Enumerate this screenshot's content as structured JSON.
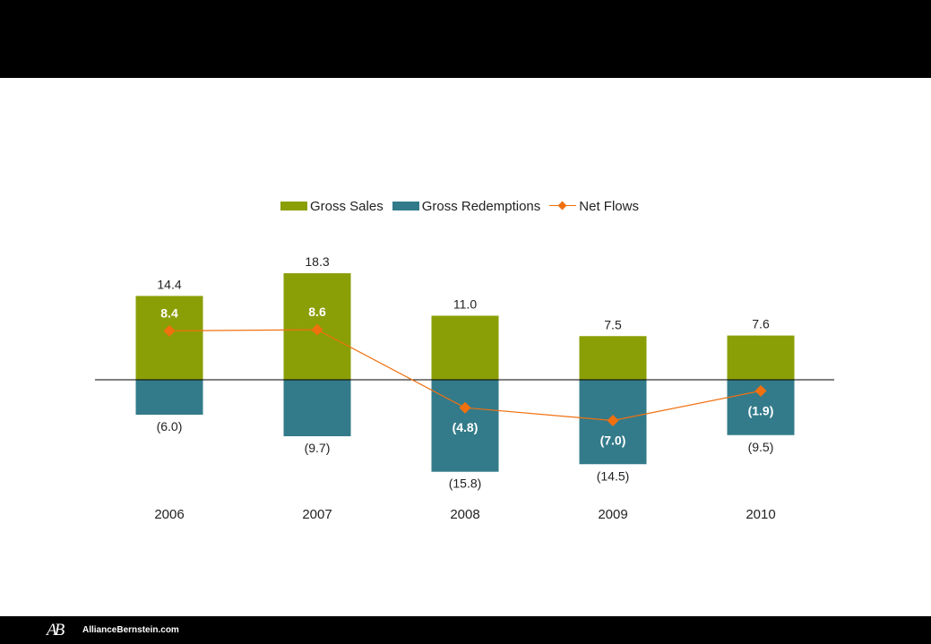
{
  "footer": {
    "logo": "AB",
    "site": "AllianceBernstein.com"
  },
  "colors": {
    "gross_sales": "#8a9f06",
    "gross_redemptions": "#337b8a",
    "net_flows": "#f07010"
  },
  "chart_data": {
    "type": "bar",
    "title": "",
    "xlabel": "",
    "ylabel": "",
    "ylim": [
      -17,
      19
    ],
    "grid": false,
    "legend_position": "top",
    "categories": [
      "2006",
      "2007",
      "2008",
      "2009",
      "2010"
    ],
    "series": [
      {
        "name": "Gross Sales",
        "type": "bar",
        "values": [
          14.4,
          18.3,
          11.0,
          7.5,
          7.6
        ],
        "labels": [
          "14.4",
          "18.3",
          "11.0",
          "7.5",
          "7.6"
        ]
      },
      {
        "name": "Gross Redemptions",
        "type": "bar",
        "values": [
          -6.0,
          -9.7,
          -15.8,
          -14.5,
          -9.5
        ],
        "labels": [
          "(6.0)",
          "(9.7)",
          "(15.8)",
          "(14.5)",
          "(9.5)"
        ]
      },
      {
        "name": "Net Flows",
        "type": "line",
        "values": [
          8.4,
          8.6,
          -4.8,
          -7.0,
          -1.9
        ],
        "labels": [
          "8.4",
          "8.6",
          "(4.8)",
          "(7.0)",
          "(1.9)"
        ]
      }
    ]
  }
}
